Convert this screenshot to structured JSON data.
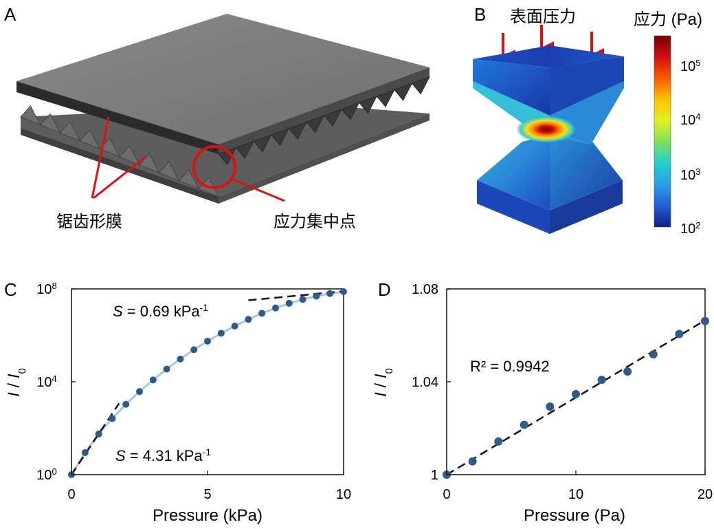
{
  "panels": {
    "A": {
      "letter": "A",
      "callout_film": "锯齿形膜",
      "callout_stress": "应力集中点"
    },
    "B": {
      "letter": "B",
      "pressure_label": "表面压力",
      "colorbar_title": "应力 (Pa)",
      "colorbar_ticks": [
        "10",
        "10",
        "10",
        "10"
      ],
      "colorbar_exps": [
        "5",
        "4",
        "3",
        "2"
      ],
      "colorbar_colors": [
        "#7a0000",
        "#d01010",
        "#ff5a00",
        "#ffc400",
        "#e4f020",
        "#7fe060",
        "#20d0d0",
        "#2aa0e6",
        "#1f5fd8",
        "#10208a"
      ]
    },
    "C": {
      "letter": "C"
    },
    "D": {
      "letter": "D"
    }
  },
  "colors": {
    "marker": "#2e5b8a",
    "curve": "#a8c8e0",
    "dash": "#111111",
    "arrow": "#e01010",
    "callout": "#e01010"
  },
  "chart_data": [
    {
      "panel": "C",
      "type": "scatter",
      "xlabel": "Pressure (kPa)",
      "ylabel_main": "I",
      "ylabel_sep": " / ",
      "ylabel_sub_base": "I",
      "ylabel_sub": "0",
      "yscale": "log",
      "xlim": [
        0,
        10
      ],
      "ylim_exp": [
        0,
        8
      ],
      "xticks": [
        "0",
        "5",
        "10"
      ],
      "yticks_base": [
        "10",
        "10",
        "10"
      ],
      "yticks_exp": [
        "0",
        "4",
        "8"
      ],
      "x": [
        0,
        0.5,
        1.0,
        1.5,
        2.0,
        2.5,
        3.0,
        3.5,
        4.0,
        4.5,
        5.0,
        5.5,
        6.0,
        6.5,
        7.0,
        7.5,
        8.0,
        8.5,
        9.0,
        9.5,
        10.0
      ],
      "log10_y": [
        0.0,
        0.95,
        1.75,
        2.42,
        3.03,
        3.58,
        4.08,
        4.55,
        4.98,
        5.38,
        5.75,
        6.09,
        6.4,
        6.69,
        6.95,
        7.18,
        7.38,
        7.55,
        7.69,
        7.8,
        7.88
      ],
      "annotations": [
        {
          "symbol": "S",
          "text": " = 0.69 kPa",
          "sup": "-1"
        },
        {
          "symbol": "S",
          "text": " = 4.31 kPa",
          "sup": "-1"
        }
      ],
      "tangent_high": {
        "x": [
          6.5,
          10.0
        ],
        "log10_y": [
          7.51,
          7.9
        ]
      },
      "tangent_low": {
        "x": [
          0.0,
          1.75
        ],
        "log10_y": [
          0.0,
          3.07
        ]
      }
    },
    {
      "panel": "D",
      "type": "scatter",
      "xlabel": "Pressure (Pa)",
      "ylabel_main": "I",
      "ylabel_sep": " / ",
      "ylabel_sub_base": "I",
      "ylabel_sub": "0",
      "xlim": [
        0,
        20
      ],
      "ylim": [
        1.0,
        1.08
      ],
      "xticks": [
        "0",
        "10",
        "20"
      ],
      "yticks": [
        "1",
        "1.04",
        "1.08"
      ],
      "x": [
        0,
        2,
        4,
        6,
        8,
        10,
        12,
        14,
        16,
        18,
        20
      ],
      "y": [
        1.0,
        1.0057,
        1.0143,
        1.0215,
        1.0293,
        1.0347,
        1.0408,
        1.0444,
        1.0518,
        1.0606,
        1.0662
      ],
      "fit": {
        "x": [
          0,
          20
        ],
        "y": [
          1.0,
          1.0665
        ]
      },
      "annotation": "R² = 0.9942"
    }
  ]
}
